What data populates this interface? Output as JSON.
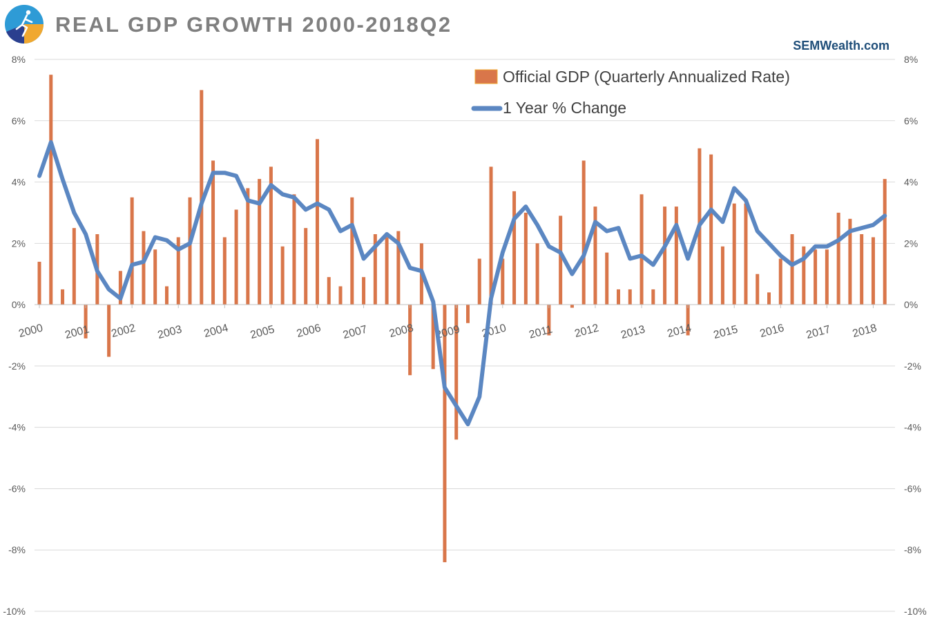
{
  "header": {
    "title": "REAL GDP GROWTH 2000-2018Q2",
    "brand": "SEMWealth.com"
  },
  "colors": {
    "bar": "#d9764a",
    "line": "#5b87c2",
    "title": "#7f7f7f",
    "brand": "#1f4e79",
    "grid": "#d9d9d9"
  },
  "chart_data": {
    "type": "bar",
    "title": "REAL GDP GROWTH 2000-2018Q2",
    "xlabel": "",
    "ylabel": "",
    "ylim": [
      -10,
      8
    ],
    "yticks": [
      8,
      6,
      4,
      2,
      0,
      -2,
      -4,
      -6,
      -8,
      -10
    ],
    "ytick_labels": [
      "8%",
      "6%",
      "4%",
      "2%",
      "0%",
      "-2%",
      "-4%",
      "-6%",
      "-8%",
      "-10%"
    ],
    "grid": true,
    "legend_position": "top-right",
    "years": [
      "2000",
      "2001",
      "2002",
      "2003",
      "2004",
      "2005",
      "2006",
      "2007",
      "2008",
      "2009",
      "2010",
      "2011",
      "2012",
      "2013",
      "2014",
      "2015",
      "2016",
      "2017",
      "2018"
    ],
    "series": [
      {
        "name": "Official GDP (Quarterly Annualized Rate)",
        "type": "bar",
        "values": [
          1.4,
          7.5,
          0.5,
          2.5,
          -1.1,
          2.3,
          -1.7,
          1.1,
          3.5,
          2.4,
          1.8,
          0.6,
          2.2,
          3.5,
          7.0,
          4.7,
          2.2,
          3.1,
          3.8,
          4.1,
          4.5,
          1.9,
          3.6,
          2.5,
          5.4,
          0.9,
          0.6,
          3.5,
          0.9,
          2.3,
          2.2,
          2.4,
          -2.3,
          2.0,
          -2.1,
          -8.4,
          -4.4,
          -0.6,
          1.5,
          4.5,
          1.5,
          3.7,
          3.0,
          2.0,
          -1.0,
          2.9,
          -0.1,
          4.7,
          3.2,
          1.7,
          0.5,
          0.5,
          3.6,
          0.5,
          3.2,
          3.2,
          -1.0,
          5.1,
          4.9,
          1.9,
          3.3,
          3.3,
          1.0,
          0.4,
          1.5,
          2.3,
          1.9,
          1.8,
          1.8,
          3.0,
          2.8,
          2.3,
          2.2,
          4.1
        ]
      },
      {
        "name": "1 Year % Change",
        "type": "line",
        "values": [
          4.2,
          5.3,
          4.1,
          3.0,
          2.3,
          1.1,
          0.5,
          0.2,
          1.3,
          1.4,
          2.2,
          2.1,
          1.8,
          2.0,
          3.3,
          4.3,
          4.3,
          4.2,
          3.4,
          3.3,
          3.9,
          3.6,
          3.5,
          3.1,
          3.3,
          3.1,
          2.4,
          2.6,
          1.5,
          1.9,
          2.3,
          2.0,
          1.2,
          1.1,
          0.1,
          -2.7,
          -3.3,
          -3.9,
          -3.0,
          0.2,
          1.7,
          2.8,
          3.2,
          2.6,
          1.9,
          1.7,
          1.0,
          1.6,
          2.7,
          2.4,
          2.5,
          1.5,
          1.6,
          1.3,
          1.9,
          2.6,
          1.5,
          2.6,
          3.1,
          2.7,
          3.8,
          3.4,
          2.4,
          2.0,
          1.6,
          1.3,
          1.5,
          1.9,
          1.9,
          2.1,
          2.4,
          2.5,
          2.6,
          2.9
        ]
      }
    ]
  }
}
